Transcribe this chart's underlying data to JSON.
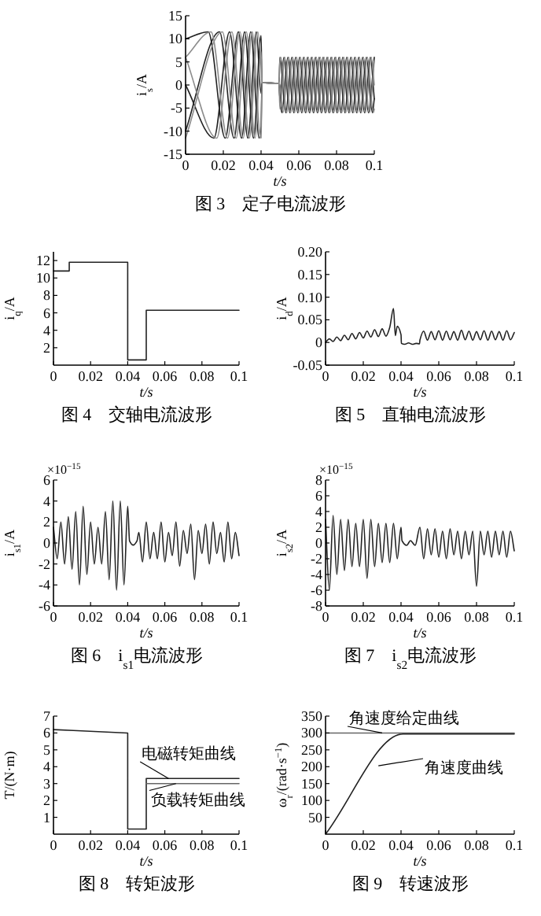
{
  "chart_data": [
    {
      "type": "line",
      "title": "图 3　定子电流波形",
      "xlabel": "t/s",
      "ylabel": "i$_{s}$/A",
      "xlim": [
        0,
        0.1
      ],
      "ylim": [
        -15,
        15
      ],
      "xticks": [
        0,
        0.02,
        0.04,
        0.06,
        0.08,
        0.1
      ],
      "yticks": [
        -15,
        -10,
        -5,
        0,
        5,
        10,
        15
      ],
      "series": [
        {
          "color": "#222222",
          "x": [
            0,
            0.012,
            0.021,
            0.028,
            0.033,
            0.0375,
            0.04,
            0.0405,
            0.0495,
            0.05,
            0.0531,
            0.0563,
            0.0594,
            0.0625,
            0.0656,
            0.0688,
            0.0719,
            0.075,
            0.0781,
            0.0813,
            0.0844,
            0.0875,
            0.0906,
            0.0938,
            0.0969,
            0.1
          ],
          "values": [
            10,
            11.5,
            -11.5,
            11.5,
            -11.5,
            11.5,
            -1.8,
            0.5,
            0.3,
            6,
            -6,
            6,
            -6,
            6,
            -6,
            6,
            -6,
            6,
            -6,
            6,
            -6,
            6,
            -6,
            6,
            -6,
            6
          ]
        },
        {
          "color": "#222222",
          "x": [
            0,
            0.018,
            0.0257,
            0.0313,
            0.036,
            0.04,
            0.0405,
            0.0495,
            0.05,
            0.0521,
            0.0552,
            0.0583,
            0.0615,
            0.0646,
            0.0677,
            0.0708,
            0.074,
            0.0771,
            0.0802,
            0.0833,
            0.0865,
            0.0896,
            0.0927,
            0.0958,
            0.099,
            0.1
          ],
          "values": [
            -10,
            11.5,
            -11.5,
            11.5,
            -11.5,
            10.7,
            0.5,
            0.3,
            -3,
            6,
            -6,
            6,
            -6,
            6,
            -6,
            6,
            -6,
            6,
            -6,
            6,
            -6,
            6,
            -6,
            6,
            -6,
            -3
          ]
        },
        {
          "color": "#222222",
          "x": [
            0,
            0.015,
            0.0233,
            0.0297,
            0.0345,
            0.039,
            0.04,
            0.0405,
            0.0495,
            0.05,
            0.051,
            0.0542,
            0.0573,
            0.0604,
            0.0635,
            0.0667,
            0.0698,
            0.0729,
            0.076,
            0.0792,
            0.0823,
            0.0854,
            0.0885,
            0.0917,
            0.0948,
            0.0979,
            0.1
          ],
          "values": [
            0,
            -11.5,
            11.5,
            -11.5,
            11.5,
            -11.5,
            -9,
            0.5,
            0.3,
            -3,
            -6,
            6,
            -6,
            6,
            -6,
            6,
            -6,
            6,
            -6,
            6,
            -6,
            6,
            -6,
            6,
            -6,
            6,
            -3
          ]
        },
        {
          "color": "#8c8c8c",
          "x": [
            0,
            0.0135,
            0.0222,
            0.0288,
            0.0338,
            0.0383,
            0.04,
            0.0405,
            0.0495,
            0.05,
            0.0505,
            0.0536,
            0.0568,
            0.0599,
            0.063,
            0.0661,
            0.0693,
            0.0724,
            0.0755,
            0.0786,
            0.0818,
            0.0849,
            0.088,
            0.0911,
            0.0943,
            0.0974,
            0.1
          ],
          "values": [
            6,
            11.5,
            -11.5,
            11.5,
            -11.5,
            11.5,
            4.2,
            0.5,
            0.3,
            5.2,
            6,
            -6,
            6,
            -6,
            6,
            -6,
            6,
            -6,
            6,
            -6,
            6,
            -6,
            6,
            -6,
            6,
            -6,
            5.2
          ]
        },
        {
          "color": "#8c8c8c",
          "x": [
            0,
            0.0195,
            0.0268,
            0.0322,
            0.0368,
            0.04,
            0.0405,
            0.0495,
            0.05,
            0.0526,
            0.0557,
            0.0589,
            0.062,
            0.0651,
            0.0682,
            0.0714,
            0.0745,
            0.0776,
            0.0807,
            0.0839,
            0.087,
            0.0901,
            0.0932,
            0.0964,
            0.0995,
            0.1
          ],
          "values": [
            -11.5,
            11.5,
            -11.5,
            11.5,
            -11.5,
            7.2,
            0.5,
            0.3,
            -5.2,
            6,
            -6,
            6,
            -6,
            6,
            -6,
            6,
            -6,
            6,
            -6,
            6,
            -6,
            6,
            -6,
            6,
            -6,
            -5.2
          ]
        },
        {
          "color": "#8c8c8c",
          "x": [
            0,
            0.0165,
            0.0245,
            0.0305,
            0.0353,
            0.0398,
            0.04,
            0.0405,
            0.0495,
            0.05,
            0.0516,
            0.0547,
            0.0578,
            0.0609,
            0.0641,
            0.0672,
            0.0703,
            0.0734,
            0.0766,
            0.0797,
            0.0828,
            0.0859,
            0.0891,
            0.0922,
            0.0953,
            0.0984,
            0.1
          ],
          "values": [
            6,
            -11.5,
            11.5,
            -11.5,
            11.5,
            -11.5,
            -11.4,
            0.5,
            0.3,
            0,
            -6,
            6,
            -6,
            6,
            -6,
            6,
            -6,
            6,
            -6,
            6,
            -6,
            6,
            -6,
            6,
            -6,
            6,
            0
          ]
        }
      ]
    },
    {
      "type": "line",
      "title": "图 4　交轴电流波形",
      "xlabel": "t/s",
      "ylabel": "i$_{q}$/A",
      "xlim": [
        0,
        0.1
      ],
      "ylim": [
        0,
        13
      ],
      "xticks": [
        0,
        0.02,
        0.04,
        0.06,
        0.08,
        0.1
      ],
      "yticks": [
        2,
        4,
        6,
        8,
        10,
        12
      ],
      "series": [
        {
          "color": "#222222",
          "x": [
            0,
            0.0085,
            0.0085,
            0.04,
            0.04,
            0.05,
            0.05,
            0.1
          ],
          "values": [
            10.8,
            10.8,
            11.8,
            11.8,
            0.6,
            0.6,
            6.3,
            6.3
          ]
        }
      ]
    },
    {
      "type": "line",
      "title": "图 5　直轴电流波形",
      "xlabel": "t/s",
      "ylabel": "i$_{d}$/A",
      "xlim": [
        0,
        0.1
      ],
      "ylim": [
        -0.05,
        0.2
      ],
      "xticks": [
        0,
        0.02,
        0.04,
        0.06,
        0.08,
        0.1
      ],
      "yticks": [
        -0.05,
        0,
        0.05,
        {
          "value": 0.1,
          "label": "0.10"
        },
        0.15,
        {
          "value": 0.2,
          "label": "0.20"
        }
      ],
      "series": [
        {
          "color": "#222222",
          "x": [
            0,
            0.002,
            0.004,
            0.006,
            0.008,
            0.01,
            0.012,
            0.014,
            0.016,
            0.018,
            0.02,
            0.022,
            0.024,
            0.026,
            0.028,
            0.03,
            0.032,
            0.034,
            0.036,
            0.037,
            0.038,
            0.04,
            0.0402,
            0.042,
            0.044,
            0.046,
            0.048,
            0.0498,
            0.05,
            0.052,
            0.054,
            0.056,
            0.058,
            0.06,
            0.062,
            0.064,
            0.066,
            0.068,
            0.07,
            0.072,
            0.074,
            0.076,
            0.078,
            0.08,
            0.082,
            0.084,
            0.086,
            0.088,
            0.09,
            0.092,
            0.094,
            0.096,
            0.098,
            0.1
          ],
          "values": [
            0,
            0.008,
            0.002,
            0.012,
            0.004,
            0.016,
            0.006,
            0.02,
            0.008,
            0.022,
            0.01,
            0.025,
            0.012,
            0.028,
            0.013,
            0.03,
            0.014,
            0.033,
            0.075,
            0.015,
            0.036,
            0.017,
            -0.002,
            -0.004,
            -0.001,
            -0.004,
            -0.002,
            -0.003,
            0.005,
            0.025,
            0.005,
            0.024,
            0.006,
            0.026,
            0.005,
            0.025,
            0.006,
            0.024,
            0.005,
            0.027,
            0.006,
            0.025,
            0.005,
            0.024,
            0.006,
            0.026,
            0.005,
            0.025,
            0.006,
            0.024,
            0.005,
            0.026,
            0.006,
            0.022
          ]
        }
      ]
    },
    {
      "type": "line",
      "title": "图 6　i$_{s1}$电流波形",
      "xlabel": "t/s",
      "ylabel": "i$_{s1}$/A",
      "annotations": [
        "×10$^{−15}$"
      ],
      "xlim": [
        0,
        0.1
      ],
      "ylim": [
        -6,
        6
      ],
      "xticks": [
        0,
        0.02,
        0.04,
        0.06,
        0.08,
        0.1
      ],
      "yticks": [
        -6,
        -4,
        -2,
        0,
        2,
        4,
        6
      ],
      "series": [
        {
          "color": "#222222",
          "x": [
            0,
            0.002,
            0.004,
            0.006,
            0.008,
            0.01,
            0.012,
            0.014,
            0.016,
            0.018,
            0.02,
            0.022,
            0.024,
            0.026,
            0.028,
            0.03,
            0.032,
            0.034,
            0.036,
            0.038,
            0.04,
            0.041,
            0.043,
            0.045,
            0.046,
            0.048,
            0.05,
            0.052,
            0.054,
            0.056,
            0.058,
            0.06,
            0.062,
            0.064,
            0.066,
            0.068,
            0.07,
            0.072,
            0.074,
            0.076,
            0.078,
            0.08,
            0.082,
            0.084,
            0.086,
            0.088,
            0.09,
            0.092,
            0.094,
            0.096,
            0.098,
            0.1
          ],
          "values": [
            1.5,
            -1.5,
            2,
            -2,
            2.5,
            -2.5,
            3,
            -4,
            3.5,
            -3,
            2,
            -2,
            1.5,
            -2,
            3,
            -3.5,
            4,
            -4.5,
            4,
            -4,
            3.5,
            0.2,
            -0.2,
            0.2,
            1,
            -1.8,
            2,
            -1.5,
            1,
            -1.5,
            2,
            -1.8,
            1,
            -1.2,
            2,
            -2.2,
            1.2,
            -1,
            1.8,
            -3.5,
            1.2,
            -1,
            1.8,
            -2,
            2,
            -1,
            1,
            -1.8,
            2,
            -1.5,
            1,
            -1.2
          ]
        }
      ]
    },
    {
      "type": "line",
      "title": "图 7　i$_{s2}$电流波形",
      "xlabel": "t/s",
      "ylabel": "i$_{s2}$/A",
      "annotations": [
        "×10$^{−15}$"
      ],
      "xlim": [
        0,
        0.1
      ],
      "ylim": [
        -8,
        8
      ],
      "xticks": [
        0,
        0.02,
        0.04,
        0.06,
        0.08,
        0.1
      ],
      "yticks": [
        -8,
        -6,
        -4,
        -2,
        0,
        2,
        4,
        6,
        8
      ],
      "series": [
        {
          "color": "#222222",
          "x": [
            0,
            0.002,
            0.004,
            0.006,
            0.008,
            0.01,
            0.012,
            0.014,
            0.016,
            0.018,
            0.02,
            0.022,
            0.024,
            0.026,
            0.028,
            0.03,
            0.032,
            0.034,
            0.036,
            0.038,
            0.04,
            0.0405,
            0.043,
            0.045,
            0.0475,
            0.05,
            0.052,
            0.054,
            0.056,
            0.058,
            0.06,
            0.062,
            0.064,
            0.066,
            0.068,
            0.07,
            0.072,
            0.074,
            0.076,
            0.078,
            0.08,
            0.082,
            0.084,
            0.086,
            0.088,
            0.09,
            0.092,
            0.094,
            0.096,
            0.098,
            0.1
          ],
          "values": [
            3,
            -6,
            3.5,
            -4,
            3,
            -3.5,
            3,
            -3,
            2.5,
            -3,
            3,
            -4.5,
            3,
            -3,
            2.5,
            -2.5,
            2.5,
            -2.5,
            2.5,
            -2,
            2,
            0.3,
            -0.3,
            0.3,
            -0.3,
            2,
            -2,
            1.8,
            -1.5,
            1.8,
            -1.8,
            1.5,
            -2,
            1.8,
            -1.5,
            1.5,
            -2,
            1.5,
            -1.5,
            1.5,
            -5.5,
            1.5,
            -1.5,
            1.5,
            -1.8,
            1.5,
            -1.5,
            1.5,
            -1.8,
            1.5,
            -1
          ]
        }
      ]
    },
    {
      "type": "line",
      "title": "图 8　转矩波形",
      "xlabel": "t/s",
      "ylabel": "T/(N·m)",
      "xlim": [
        0,
        0.1
      ],
      "ylim": [
        0,
        7
      ],
      "xticks": [
        0,
        0.02,
        0.04,
        0.06,
        0.08,
        0.1
      ],
      "yticks": [
        1,
        2,
        3,
        4,
        5,
        6,
        7
      ],
      "series": [
        {
          "name": "电磁转矩曲线",
          "color": "#222222",
          "x": [
            0,
            0.04,
            0.04,
            0.05,
            0.05,
            0.1
          ],
          "values": [
            6.2,
            6.0,
            0.3,
            0.3,
            3.3,
            3.3
          ]
        },
        {
          "name": "负载转矩曲线",
          "color": "#666666",
          "x": [
            0.05,
            0.1
          ],
          "values": [
            3.0,
            3.0
          ]
        }
      ]
    },
    {
      "type": "line",
      "title": "图 9　转速波形",
      "xlabel": "t/s",
      "ylabel": "ω$_{r}$/(rad·s$^{−1}$)",
      "xlim": [
        0,
        0.1
      ],
      "ylim": [
        0,
        350
      ],
      "xticks": [
        0,
        0.02,
        0.04,
        0.06,
        0.08,
        0.1
      ],
      "yticks": [
        50,
        100,
        150,
        200,
        250,
        300,
        350
      ],
      "series": [
        {
          "name": "角速度给定曲线",
          "color": "#666666",
          "x": [
            0,
            0.1
          ],
          "values": [
            300,
            300
          ]
        },
        {
          "name": "角速度曲线",
          "color": "#222222",
          "x": [
            0,
            0.041,
            0.1
          ],
          "values": [
            0,
            297,
            297
          ]
        }
      ]
    }
  ]
}
